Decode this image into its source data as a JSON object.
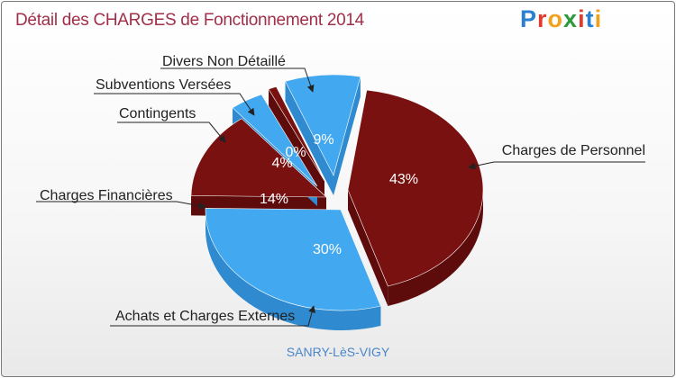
{
  "header": {
    "title": "Détail des CHARGES de Fonctionnement 2014",
    "logo_text": "Proxiti",
    "logo_colors": [
      "#2a7fd0",
      "#e23b2e",
      "#f2a11d",
      "#2a9a3a",
      "#e23b2e",
      "#2a7fd0",
      "#f2a11d"
    ]
  },
  "footer": {
    "location": "SANRY-LèS-VIGY"
  },
  "chart_data": {
    "type": "pie",
    "title": "Détail des CHARGES de Fonctionnement 2014",
    "subtitle": "SANRY-LèS-VIGY",
    "slices": [
      {
        "label": "Charges de Personnel",
        "value": 43,
        "pct_label": "43%",
        "color": "#7a1111",
        "side_color": "#5e0b0b"
      },
      {
        "label": "Achats et Charges Externes",
        "value": 30,
        "pct_label": "30%",
        "color": "#42a8f0",
        "side_color": "#2f8ad0"
      },
      {
        "label": "Charges Financières",
        "value": 14,
        "pct_label": "14%",
        "color": "#7a1111",
        "side_color": "#5e0b0b"
      },
      {
        "label": "Contingents",
        "value": 4,
        "pct_label": "4%",
        "color": "#42a8f0",
        "side_color": "#2f8ad0"
      },
      {
        "label": "Subventions Versées",
        "value": 0,
        "pct_label": "0%",
        "color": "#7a1111",
        "side_color": "#5e0b0b"
      },
      {
        "label": "Divers Non Détaillé",
        "value": 9,
        "pct_label": "9%",
        "color": "#42a8f0",
        "side_color": "#2f8ad0"
      }
    ]
  }
}
